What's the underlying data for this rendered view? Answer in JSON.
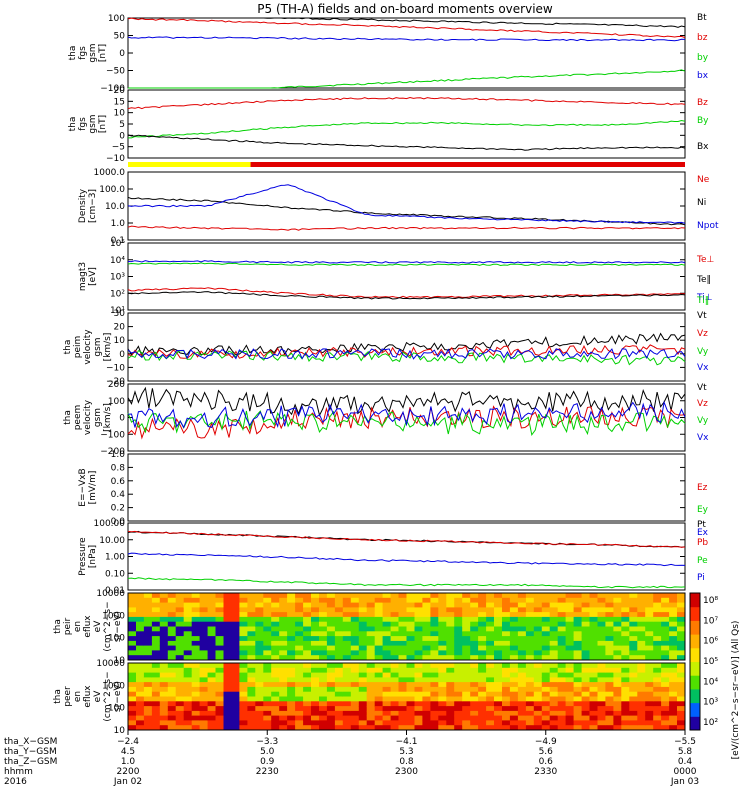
{
  "title": "P5 (TH-A) fields and on-board moments overview",
  "colors": {
    "black": "#000000",
    "red": "#e00000",
    "blue": "#0000e0",
    "green": "#00d000",
    "yellow": "#ffff00"
  },
  "chart_data": [
    {
      "id": "fgs_gsm",
      "type": "line",
      "ylabel": [
        "tha",
        "fgs",
        "gsm",
        "[nT]"
      ],
      "yticks": [
        "100",
        "50",
        "0",
        "−50",
        "−100"
      ],
      "ylim": [
        -100,
        100
      ],
      "series": [
        {
          "name": "Bt",
          "color": "black",
          "values": [
            110,
            105,
            100,
            95,
            90,
            85,
            80,
            75
          ]
        },
        {
          "name": "bz",
          "color": "red",
          "values": [
            98,
            92,
            85,
            78,
            70,
            62,
            54,
            45
          ]
        },
        {
          "name": "by",
          "color": "green",
          "values": [
            -120,
            -110,
            -98,
            -88,
            -78,
            -68,
            -60,
            -50
          ]
        },
        {
          "name": "bx",
          "color": "blue",
          "values": [
            44,
            44,
            42,
            40,
            38,
            38,
            37,
            37
          ]
        }
      ]
    },
    {
      "id": "fgs_gse",
      "type": "line",
      "ylabel": [
        "tha",
        "fgs",
        "gsm",
        "[nT]"
      ],
      "yticks": [
        "20",
        "15",
        "10",
        "5",
        "0",
        "−5",
        "−10"
      ],
      "ylim": [
        -13,
        20
      ],
      "series": [
        {
          "name": "Bz",
          "color": "red",
          "values": [
            11,
            13,
            15,
            16,
            16,
            15,
            14,
            13
          ]
        },
        {
          "name": "By",
          "color": "green",
          "values": [
            -3,
            -1,
            2,
            4,
            4,
            3,
            3,
            5
          ]
        },
        {
          "name": "Bx",
          "color": "black",
          "values": [
            -2,
            -4,
            -6,
            -7,
            -8,
            -9,
            -8,
            -8
          ]
        }
      ]
    },
    {
      "id": "density",
      "type": "line",
      "log": true,
      "ylabel": [
        "Density",
        "[cm−3]"
      ],
      "yticks": [
        "1000.0",
        "100.0",
        "10.0",
        "1.0",
        "0.1"
      ],
      "ylim": [
        0.1,
        1000
      ],
      "series": [
        {
          "name": "Ne",
          "color": "red",
          "values": [
            0.6,
            0.5,
            0.4,
            0.5,
            0.5,
            0.5,
            0.5,
            0.5
          ]
        },
        {
          "name": "Ni",
          "color": "black",
          "values": [
            30,
            20,
            8,
            4,
            2.5,
            1.8,
            1.2,
            0.8
          ]
        },
        {
          "name": "Npot",
          "color": "blue",
          "values": [
            10,
            10,
            200,
            3,
            2,
            1.5,
            1.2,
            1.0
          ]
        }
      ]
    },
    {
      "id": "temp",
      "type": "line",
      "log": true,
      "ylabel": [
        "magt3",
        "[eV]"
      ],
      "yticks": [
        "10⁵",
        "10⁴",
        "10³",
        "10²",
        "10¹"
      ],
      "ylim": [
        10,
        100000
      ],
      "series": [
        {
          "name": "Te⊥",
          "color": "red",
          "values": [
            150,
            200,
            100,
            60,
            60,
            70,
            80,
            90
          ]
        },
        {
          "name": "Te‖",
          "color": "black",
          "values": [
            100,
            120,
            70,
            50,
            50,
            60,
            70,
            80
          ]
        },
        {
          "name": "Ti⊥",
          "color": "blue",
          "values": [
            8000,
            8000,
            7000,
            7000,
            7000,
            7000,
            7000,
            7000
          ]
        },
        {
          "name": "Ti‖",
          "color": "green",
          "values": [
            6000,
            6000,
            5000,
            5000,
            5000,
            5000,
            5000,
            5000
          ]
        }
      ]
    },
    {
      "id": "peim",
      "type": "line",
      "ylabel": [
        "tha",
        "peim",
        "velocity",
        "gsm",
        "[km/s]"
      ],
      "yticks": [
        "30",
        "20",
        "10",
        "0",
        "−10",
        "−20"
      ],
      "ylim": [
        -20,
        30
      ],
      "series": [
        {
          "name": "Vt",
          "color": "black",
          "values": [
            2,
            3,
            3,
            4,
            6,
            8,
            10,
            12
          ]
        },
        {
          "name": "Vz",
          "color": "red",
          "values": [
            0,
            0,
            1,
            1,
            2,
            2,
            3,
            3
          ]
        },
        {
          "name": "Vy",
          "color": "green",
          "values": [
            -1,
            -1,
            -2,
            -2,
            -3,
            -3,
            -4,
            -5
          ]
        },
        {
          "name": "Vx",
          "color": "blue",
          "values": [
            0,
            0,
            0,
            0,
            0,
            0,
            0,
            0
          ]
        }
      ]
    },
    {
      "id": "peem",
      "type": "line",
      "ylabel": [
        "tha",
        "peem",
        "velocity",
        "gsm",
        "[km/s]"
      ],
      "yticks": [
        "200",
        "100",
        "0",
        "−100",
        "−200"
      ],
      "ylim": [
        -200,
        200
      ],
      "series": [
        {
          "name": "Vt",
          "color": "black",
          "values": [
            120,
            110,
            70,
            80,
            90,
            90,
            100,
            100
          ]
        },
        {
          "name": "Vz",
          "color": "red",
          "values": [
            -60,
            -70,
            -20,
            0,
            0,
            0,
            0,
            0
          ]
        },
        {
          "name": "Vy",
          "color": "green",
          "values": [
            -30,
            -20,
            -20,
            -30,
            -40,
            -40,
            -30,
            -30
          ]
        },
        {
          "name": "Vx",
          "color": "blue",
          "values": [
            0,
            -10,
            10,
            20,
            20,
            30,
            30,
            30
          ]
        }
      ]
    },
    {
      "id": "efield",
      "type": "line",
      "ylabel": [
        "E=−VxB",
        "[mV/m]"
      ],
      "yticks": [
        "1.0",
        "0.8",
        "0.6",
        "0.4",
        "0.2",
        "0.0"
      ],
      "ylim": [
        0,
        1
      ],
      "series": [
        {
          "name": "Ez",
          "color": "red",
          "values": []
        },
        {
          "name": "Ey",
          "color": "green",
          "values": []
        },
        {
          "name": "Ex",
          "color": "blue",
          "values": []
        }
      ]
    },
    {
      "id": "pressure",
      "type": "line",
      "log": true,
      "ylabel": [
        "Pressure",
        "[nPa]"
      ],
      "yticks": [
        "100.00",
        "10.00",
        "1.00",
        "0.10",
        "0.01"
      ],
      "ylim": [
        0.01,
        100
      ],
      "series": [
        {
          "name": "Pt",
          "color": "black",
          "values": [
            30,
            22,
            15,
            10,
            8,
            6,
            5,
            3.5
          ]
        },
        {
          "name": "Pb",
          "color": "red",
          "values": [
            30,
            22,
            15,
            10,
            8,
            6,
            5,
            3.5
          ]
        },
        {
          "name": "Pe",
          "color": "green",
          "values": [
            0.05,
            0.04,
            0.03,
            0.02,
            0.02,
            0.02,
            0.015,
            0.015
          ]
        },
        {
          "name": "Pi",
          "color": "blue",
          "values": [
            1.5,
            1.2,
            0.9,
            0.6,
            0.5,
            0.4,
            0.35,
            0.3
          ]
        }
      ]
    },
    {
      "id": "peir",
      "type": "heatmap",
      "ylabel": [
        "tha",
        "peir",
        "en",
        "eflux",
        "eV",
        "(cm^2−s−",
        "sr−eV)"
      ],
      "yticks": [
        "10000",
        "1000",
        "100",
        "10"
      ]
    },
    {
      "id": "peer",
      "type": "heatmap",
      "ylabel": [
        "tha",
        "peer",
        "en",
        "eflux",
        "eV",
        "(cm^2−s−",
        "sr−eV)"
      ],
      "yticks": [
        "10000",
        "1000",
        "100",
        "10"
      ]
    }
  ],
  "colorbar": {
    "label": "[eV/(cm^2−s−sr−eV)] (All Qs)",
    "ticks": [
      "10⁸",
      "10⁷",
      "10⁶",
      "10⁵",
      "10⁴",
      "10³",
      "10²"
    ]
  },
  "xaxis": {
    "ticks": [
      {
        "row": [
          "−2.4",
          "4.5",
          "1.0",
          "2200",
          "Jan 02"
        ]
      },
      {
        "row": [
          "−3.3",
          "5.0",
          "0.9",
          "2230",
          ""
        ]
      },
      {
        "row": [
          "−4.1",
          "5.3",
          "0.8",
          "2300",
          ""
        ]
      },
      {
        "row": [
          "−4.9",
          "5.6",
          "0.6",
          "2330",
          ""
        ]
      },
      {
        "row": [
          "−5.5",
          "5.8",
          "0.4",
          "0000",
          "Jan 03"
        ]
      }
    ],
    "row_labels": [
      "tha_X−GSM",
      "tha_Y−GSM",
      "tha_Z−GSM",
      "hhmm",
      "2016"
    ]
  },
  "mode_bar": {
    "segments": [
      {
        "color": "yellow",
        "fraction": 0.22
      },
      {
        "color": "red",
        "fraction": 0.78
      }
    ]
  }
}
